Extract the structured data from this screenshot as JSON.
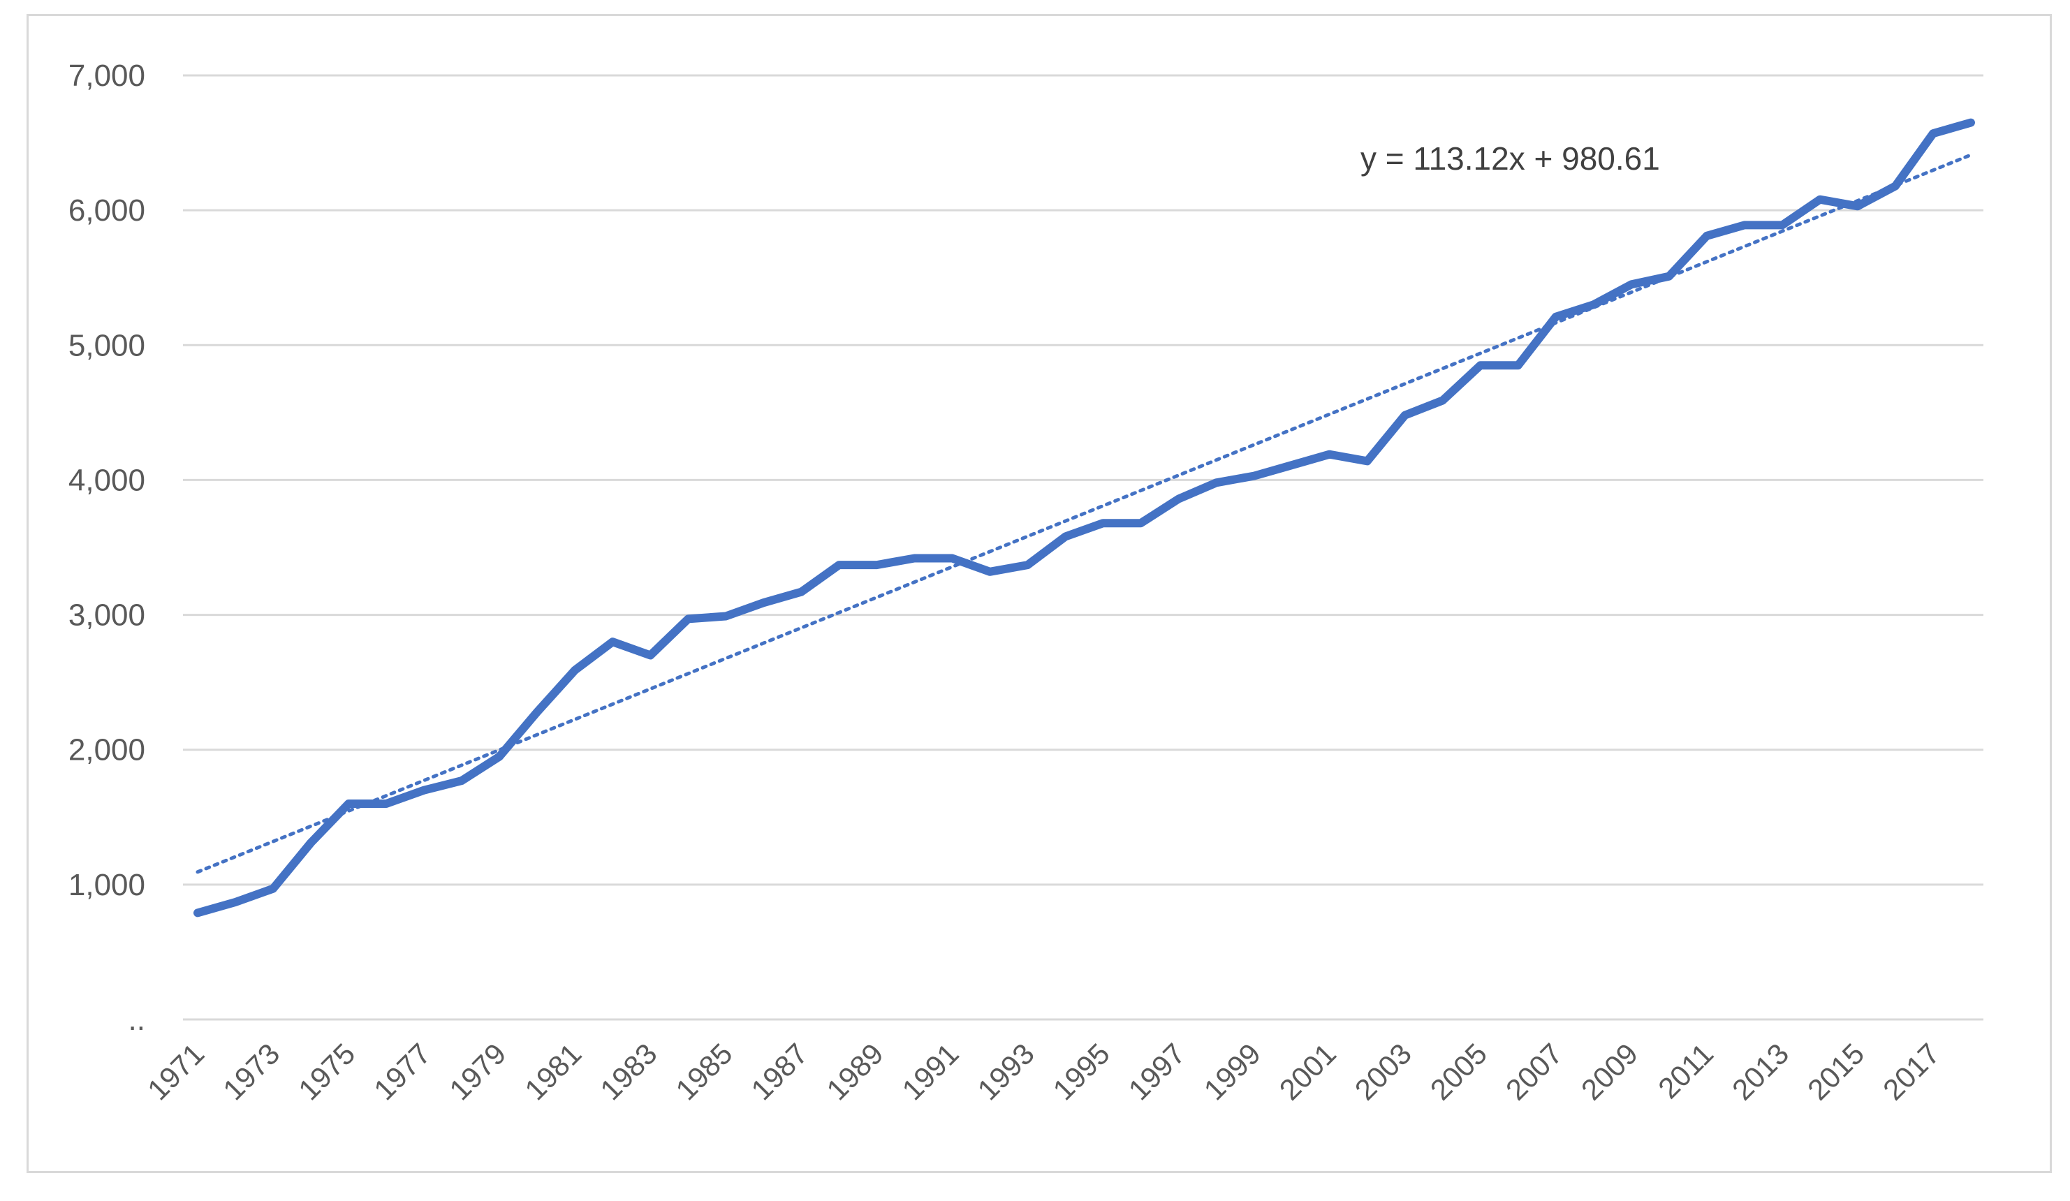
{
  "chart_data": {
    "type": "line",
    "title": "",
    "xlabel": "",
    "ylabel": "",
    "ylim": [
      0,
      7000
    ],
    "y_ticks": [
      0,
      1000,
      2000,
      3000,
      4000,
      5000,
      6000,
      7000
    ],
    "y_tick_labels": [
      "..",
      "1,000",
      "2,000",
      "3,000",
      "4,000",
      "5,000",
      "6,000",
      "7,000"
    ],
    "x_tick_labels": [
      "1971",
      "1973",
      "1975",
      "1977",
      "1979",
      "1981",
      "1983",
      "1985",
      "1987",
      "1989",
      "1991",
      "1993",
      "1995",
      "1997",
      "1999",
      "2001",
      "2003",
      "2005",
      "2007",
      "2009",
      "2011",
      "2013",
      "2015",
      "2017"
    ],
    "grid": "horizontal",
    "legend": "none",
    "x": [
      1971,
      1972,
      1973,
      1974,
      1975,
      1976,
      1977,
      1978,
      1979,
      1980,
      1981,
      1982,
      1983,
      1984,
      1985,
      1986,
      1987,
      1988,
      1989,
      1990,
      1991,
      1992,
      1993,
      1994,
      1995,
      1996,
      1997,
      1998,
      1999,
      2000,
      2001,
      2002,
      2003,
      2004,
      2005,
      2006,
      2007,
      2008,
      2009,
      2010,
      2011,
      2012,
      2013,
      2014,
      2015,
      2016,
      2017,
      2018
    ],
    "series": [
      {
        "values": [
          790,
          870,
          970,
          1310,
          1600,
          1600,
          1700,
          1770,
          1950,
          2280,
          2590,
          2800,
          2700,
          2970,
          2990,
          3090,
          3170,
          3370,
          3370,
          3420,
          3420,
          3320,
          3370,
          3580,
          3680,
          3680,
          3860,
          3980,
          4030,
          4110,
          4190,
          4140,
          4480,
          4590,
          4850,
          4850,
          5210,
          5300,
          5450,
          5510,
          5810,
          5890,
          5890,
          6080,
          6030,
          6180,
          6570,
          6650
        ],
        "color": "#4472c4"
      }
    ],
    "trendline": {
      "kind": "linear",
      "slope": 113.12,
      "intercept": 980.61,
      "equation_label": "y = 113.12x + 980.61",
      "color": "#4472c4",
      "style": "dotted"
    },
    "colors": {
      "gridline": "#d9d9d9",
      "tick_text": "#595959",
      "frame": "#d9d9d9"
    }
  }
}
